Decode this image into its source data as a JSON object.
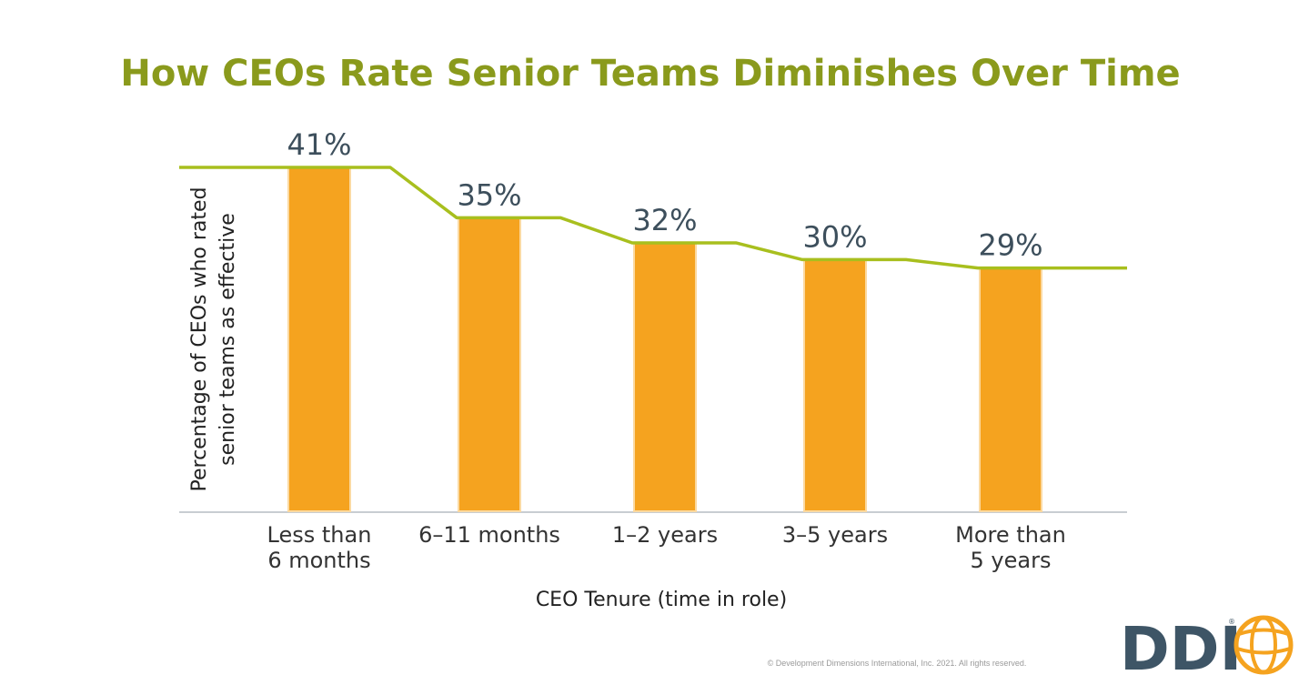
{
  "chart_data": {
    "type": "bar",
    "title": "How CEOs Rate Senior Teams Diminishes Over Time",
    "xlabel": "CEO Tenure (time in role)",
    "ylabel": [
      "Percentage of CEOs who rated",
      "senior teams as effective"
    ],
    "categories": [
      [
        "Less than",
        "6 months"
      ],
      [
        "6–11 months"
      ],
      [
        "1–2 years"
      ],
      [
        "3–5 years"
      ],
      [
        "More than",
        "5 years"
      ]
    ],
    "values": [
      41,
      35,
      32,
      30,
      29
    ],
    "value_labels": [
      "41%",
      "35%",
      "32%",
      "30%",
      "29%"
    ],
    "ylim": [
      0,
      41
    ],
    "grid": false,
    "trend_line": true
  },
  "colors": {
    "title": "#8a9a1c",
    "bar": "#f5a31f",
    "bar_edge": "#fbd9a0",
    "trend_line": "#a8bf1e",
    "baseline": "#c8cdd2",
    "logo": "#3e5566",
    "logo_globe": "#f5a31f"
  },
  "footer": {
    "copyright": "© Development Dimensions International, Inc. 2021. All rights reserved.",
    "logo_text": "DDI",
    "logo_mark": "®"
  }
}
